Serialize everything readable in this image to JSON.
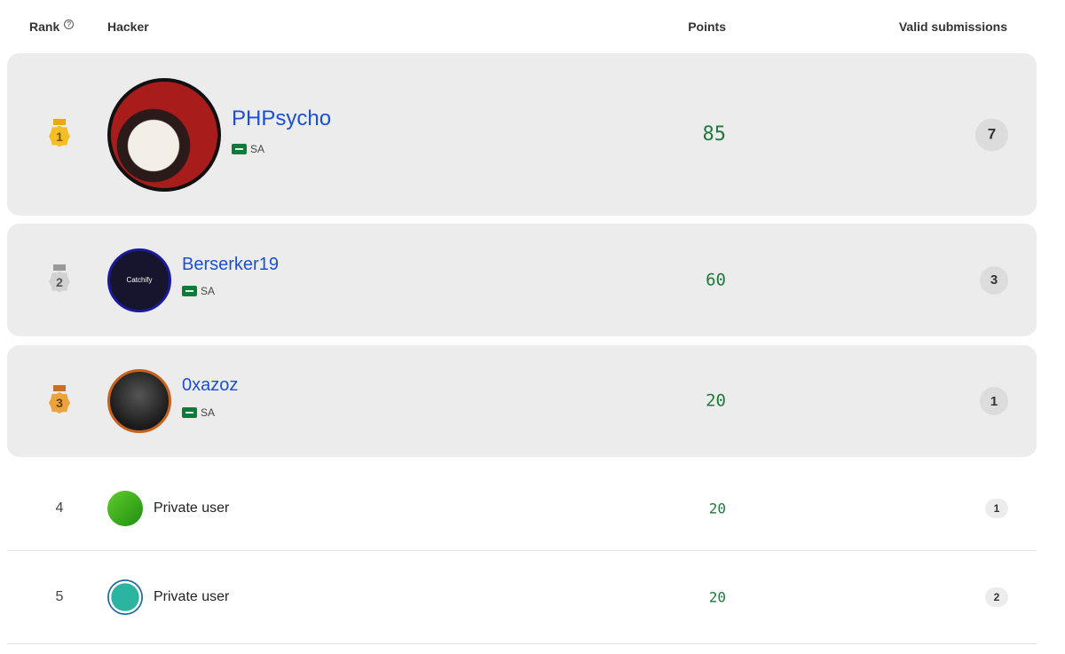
{
  "columns": {
    "rank": "Rank",
    "hacker": "Hacker",
    "points": "Points",
    "valid_submissions": "Valid submissions"
  },
  "rank_help_icon": "question-circle-icon",
  "rows": [
    {
      "rank": "1",
      "name": "PHPsycho",
      "country": "SA",
      "points": "85",
      "submissions": "7",
      "medal": "gold",
      "border": "#111111"
    },
    {
      "rank": "2",
      "name": "Berserker19",
      "country": "SA",
      "points": "60",
      "submissions": "3",
      "medal": "silver",
      "border": "#1a1a9a",
      "avatar_logo": "Catchify"
    },
    {
      "rank": "3",
      "name": "0xazoz",
      "country": "SA",
      "points": "20",
      "submissions": "1",
      "medal": "bronze",
      "border": "#c8611e"
    },
    {
      "rank": "4",
      "name": "Private user",
      "points": "20",
      "submissions": "1"
    },
    {
      "rank": "5",
      "name": "Private user",
      "points": "20",
      "submissions": "2"
    }
  ],
  "colors": {
    "gold": "#f2b61c",
    "silver": "#c4c4c4",
    "bronze": "#e39a3a",
    "link": "#1a4fd6",
    "points": "#1f7a3a"
  }
}
